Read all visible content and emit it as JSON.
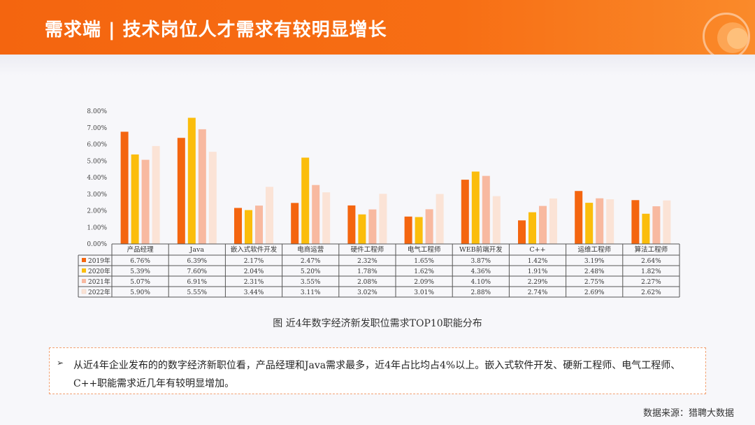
{
  "header": {
    "title": "需求端 | 技术岗位人才需求有较明显增长"
  },
  "chart_data": {
    "type": "bar",
    "categories": [
      "产品经理",
      "Java",
      "嵌入式软件开发",
      "电商运营",
      "硬件工程师",
      "电气工程师",
      "WEB前端开发",
      "C++",
      "运维工程师",
      "算法工程师"
    ],
    "series": [
      {
        "name": "2019年",
        "color": "#f4650f",
        "values": [
          6.76,
          6.39,
          2.17,
          2.47,
          2.32,
          1.65,
          3.87,
          1.42,
          3.19,
          2.64
        ],
        "labels": [
          "6.76%",
          "6.39%",
          "2.17%",
          "2.47%",
          "2.32%",
          "1.65%",
          "3.87%",
          "1.42%",
          "3.19%",
          "2.64%"
        ]
      },
      {
        "name": "2020年",
        "color": "#fbbd0c",
        "values": [
          5.39,
          7.6,
          2.04,
          5.2,
          1.78,
          1.62,
          4.36,
          1.91,
          2.48,
          1.82
        ],
        "labels": [
          "5.39%",
          "7.60%",
          "2.04%",
          "5.20%",
          "1.78%",
          "1.62%",
          "4.36%",
          "1.91%",
          "2.48%",
          "1.82%"
        ]
      },
      {
        "name": "2021年",
        "color": "#f8b9a0",
        "values": [
          5.07,
          6.91,
          2.31,
          3.55,
          2.08,
          2.09,
          4.1,
          2.29,
          2.75,
          2.27
        ],
        "labels": [
          "5.07%",
          "6.91%",
          "2.31%",
          "3.55%",
          "2.08%",
          "2.09%",
          "4.10%",
          "2.29%",
          "2.75%",
          "2.27%"
        ]
      },
      {
        "name": "2022年",
        "color": "#fbe3d6",
        "values": [
          5.9,
          5.55,
          3.44,
          3.11,
          3.02,
          3.01,
          2.88,
          2.74,
          2.69,
          2.62
        ],
        "labels": [
          "5.90%",
          "5.55%",
          "3.44%",
          "3.11%",
          "3.02%",
          "3.01%",
          "2.88%",
          "2.74%",
          "2.69%",
          "2.62%"
        ]
      }
    ],
    "yticks": [
      "0.00%",
      "1.00%",
      "2.00%",
      "3.00%",
      "4.00%",
      "5.00%",
      "6.00%",
      "7.00%",
      "8.00%"
    ],
    "ylim": [
      0,
      8
    ],
    "grid": false,
    "legend": "data-table",
    "caption": "图 近4年数字经济新发职位需求TOP10职能分布"
  },
  "note": {
    "bullet": "➢",
    "text": "从近4年企业发布的的数字经济新职位看，产品经理和Java需求最多，近4年占比均占4%以上。嵌入式软件开发、硬新工程师、电气工程师、C++职能需求近几年有较明显增加。"
  },
  "source": "数据来源：猎聘大数据"
}
